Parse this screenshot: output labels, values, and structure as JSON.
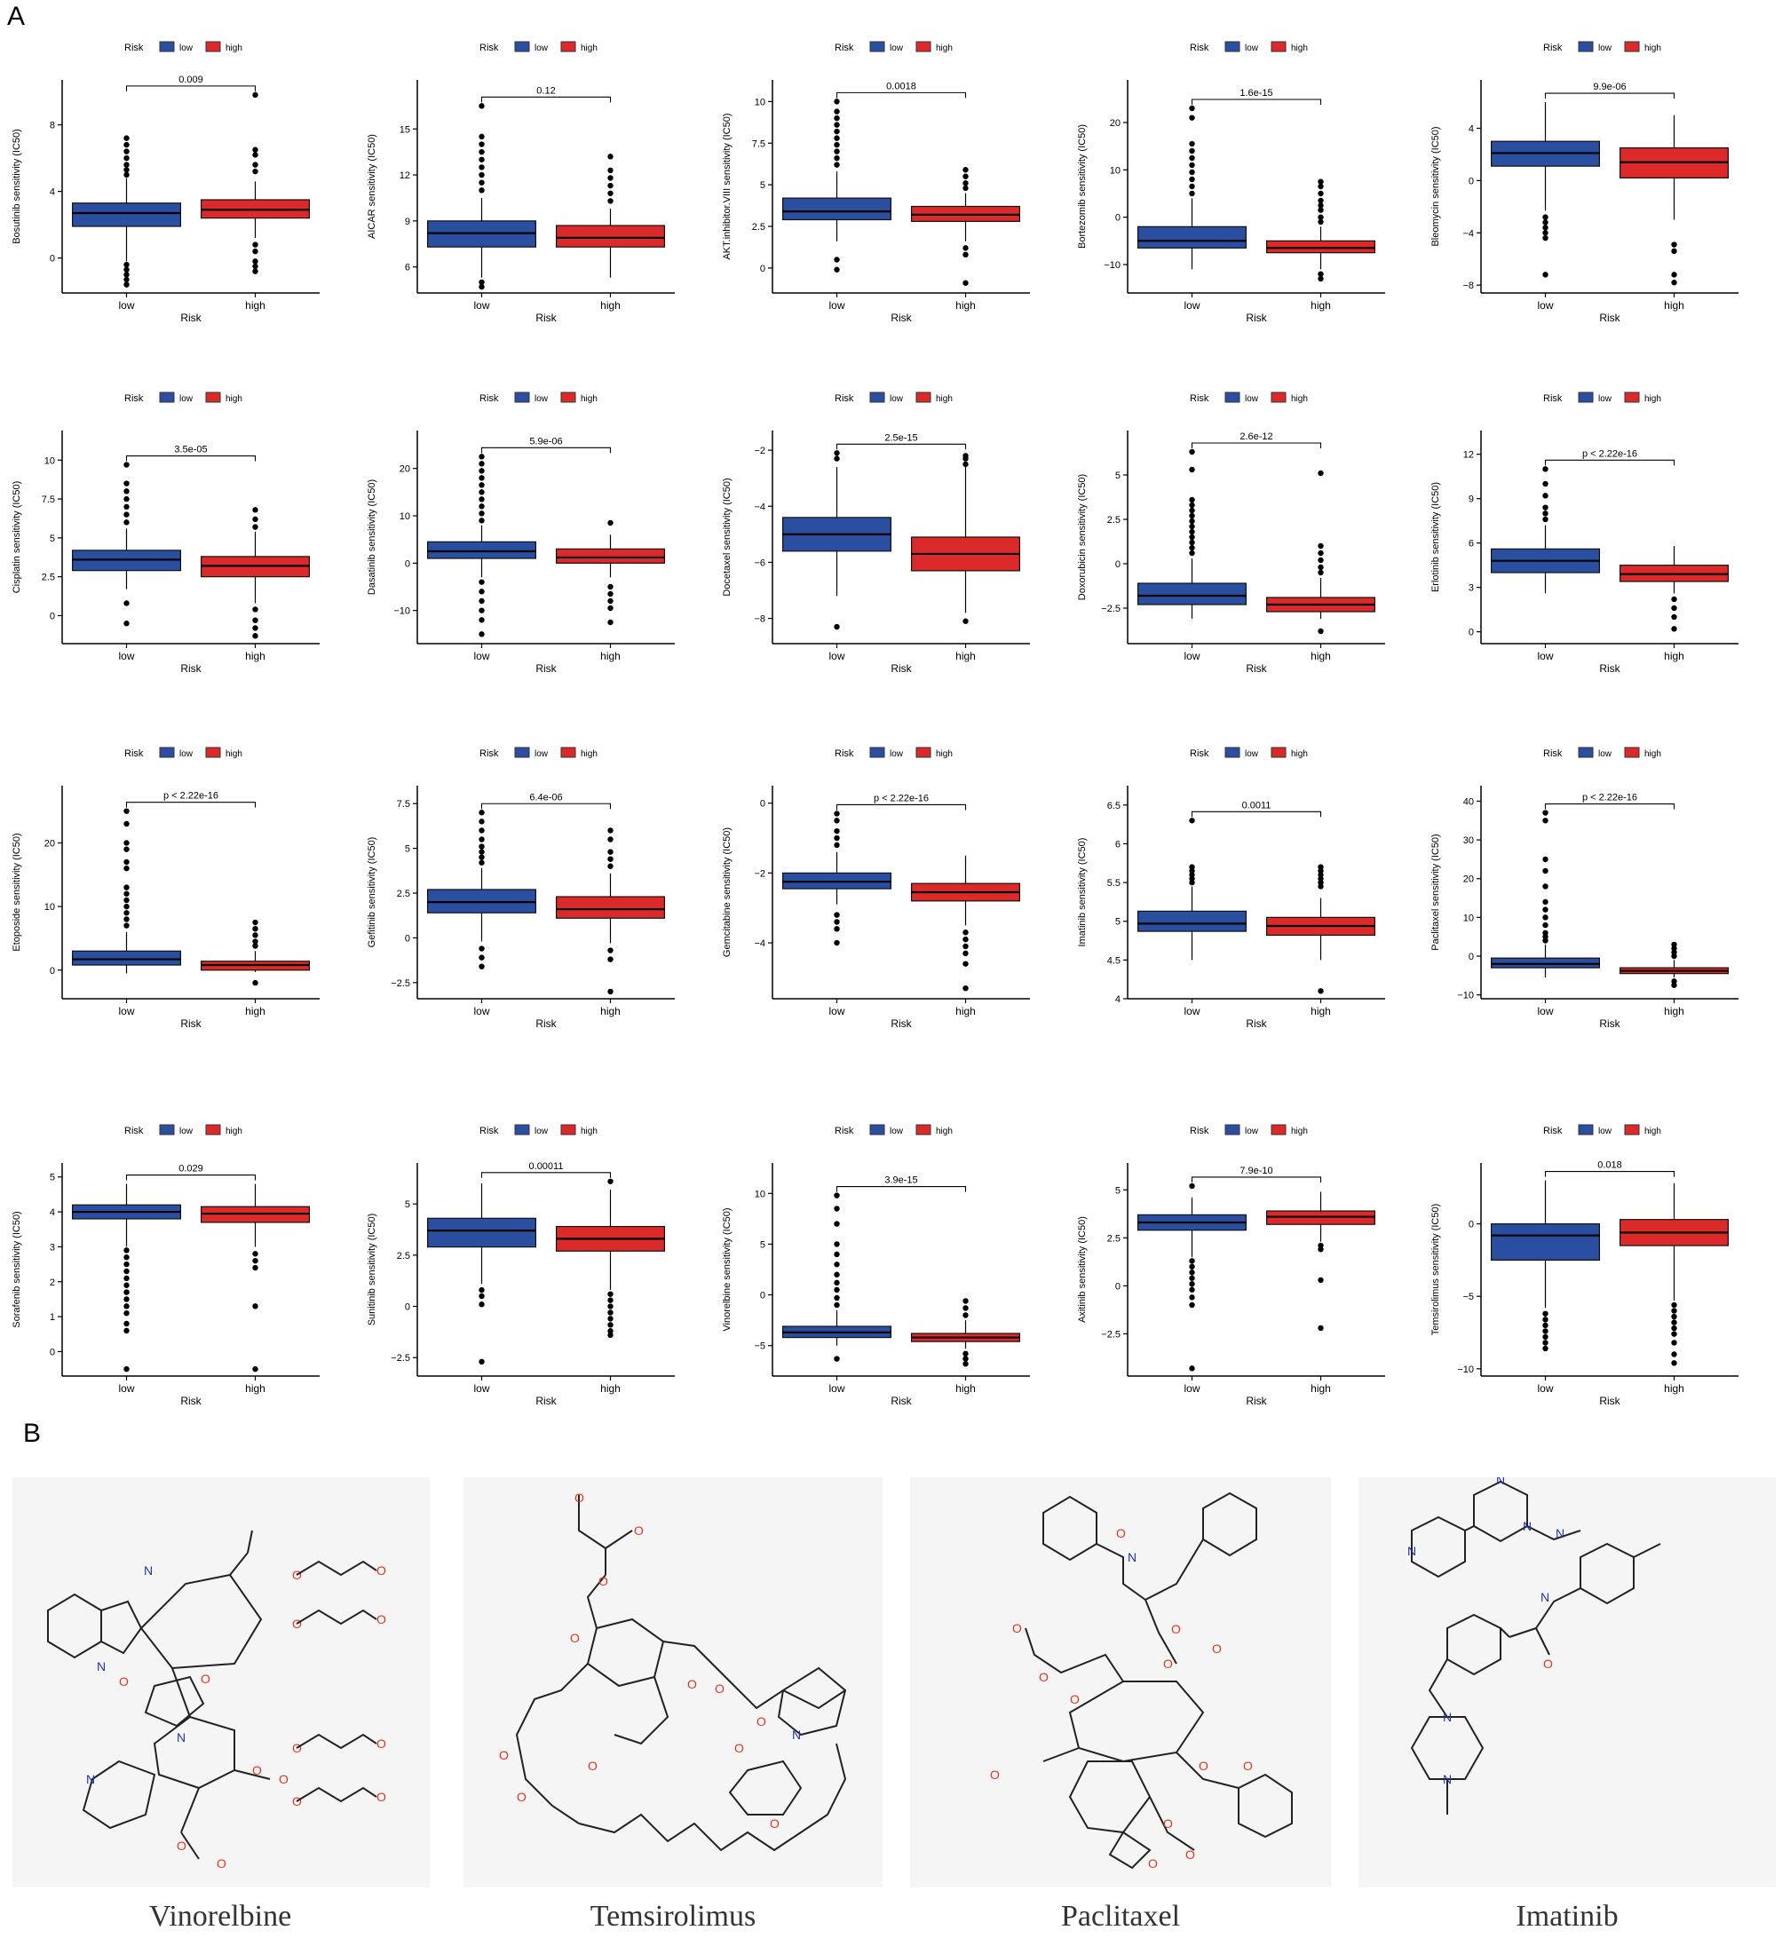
{
  "panels": {
    "a": "A",
    "b": "B"
  },
  "legend": {
    "title": "Risk",
    "low": "low",
    "high": "high"
  },
  "colors": {
    "low": "#2a4fa0",
    "high": "#dc2a2a",
    "atom_o": "#e0361c",
    "atom_n": "#2233aa",
    "atom_h": "#6a8f8a"
  },
  "chart_data": [
    {
      "type": "box",
      "ylabel": "Bosutinib sensitivity (IC50)",
      "xlabel": "Risk",
      "categories": [
        "low",
        "high"
      ],
      "p": "0.009",
      "yticks": [
        0,
        4,
        8
      ],
      "ylim": [
        -2.1,
        10.7
      ],
      "low": {
        "min": -0.2,
        "q1": 1.9,
        "median": 2.7,
        "q3": 3.3,
        "max": 4.8,
        "outliers": [
          5,
          5.3,
          5.6,
          6,
          6.4,
          6.8,
          7.2,
          -0.4,
          -0.7,
          -1.0,
          -1.3,
          -1.6
        ]
      },
      "high": {
        "min": 1.2,
        "q1": 2.4,
        "median": 2.9,
        "q3": 3.5,
        "max": 4.6,
        "outliers": [
          5.2,
          5.6,
          6.2,
          6.5,
          9.8,
          0.8,
          0.4,
          -0.2,
          -0.5,
          -0.8
        ]
      }
    },
    {
      "type": "box",
      "ylabel": "AICAR sensitivity (IC50)",
      "xlabel": "Risk",
      "categories": [
        "low",
        "high"
      ],
      "p": "0.12",
      "yticks": [
        6,
        9,
        12,
        15
      ],
      "ylim": [
        4.3,
        18.2
      ],
      "low": {
        "min": 5.3,
        "q1": 7.3,
        "median": 8.2,
        "q3": 9.0,
        "max": 10.5,
        "outliers": [
          11,
          11.5,
          12,
          12.5,
          13,
          13.5,
          14,
          14.5,
          16.5,
          4.7,
          5.0
        ]
      },
      "high": {
        "min": 5.3,
        "q1": 7.3,
        "median": 7.9,
        "q3": 8.7,
        "max": 9.8,
        "outliers": [
          10.3,
          10.8,
          11.3,
          11.8,
          12.3,
          13.2
        ]
      }
    },
    {
      "type": "box",
      "ylabel": "AKT.inhibitor.VIII sensitivity (IC50)",
      "xlabel": "Risk",
      "categories": [
        "low",
        "high"
      ],
      "p": "0.0018",
      "yticks": [
        0,
        2.5,
        5,
        7.5,
        10
      ],
      "ylim": [
        -1.5,
        11.3
      ],
      "low": {
        "min": 1.6,
        "q1": 2.9,
        "median": 3.4,
        "q3": 4.2,
        "max": 5.8,
        "outliers": [
          6.2,
          6.6,
          7,
          7.4,
          7.8,
          8.2,
          8.6,
          9,
          9.4,
          10,
          0.5,
          -0.1
        ]
      },
      "high": {
        "min": 1.6,
        "q1": 2.8,
        "median": 3.2,
        "q3": 3.7,
        "max": 4.5,
        "outliers": [
          4.8,
          5.1,
          5.5,
          5.9,
          1.2,
          0.8,
          -0.9
        ]
      }
    },
    {
      "type": "box",
      "ylabel": "Bortezomib sensitivity (IC50)",
      "xlabel": "Risk",
      "categories": [
        "low",
        "high"
      ],
      "p": "1.6e-15",
      "yticks": [
        -10,
        0,
        10,
        20
      ],
      "ylim": [
        -16,
        29
      ],
      "low": {
        "min": -11,
        "q1": -6.5,
        "median": -5,
        "q3": -2,
        "max": 4,
        "outliers": [
          5,
          6.5,
          8,
          9.5,
          11,
          12.5,
          14,
          15.5,
          21,
          23
        ]
      },
      "high": {
        "min": -11,
        "q1": -7.5,
        "median": -6.5,
        "q3": -5,
        "max": -2,
        "outliers": [
          -1,
          0,
          1.5,
          2.5,
          3.5,
          5,
          6.5,
          7.5,
          -12,
          -13
        ]
      }
    },
    {
      "type": "box",
      "ylabel": "Bleomycin sensitivity (IC50)",
      "xlabel": "Risk",
      "categories": [
        "low",
        "high"
      ],
      "p": "9.9e-06",
      "yticks": [
        -8,
        -4,
        0,
        4
      ],
      "ylim": [
        -8.6,
        7.7
      ],
      "low": {
        "min": -2.3,
        "q1": 1.1,
        "median": 2.1,
        "q3": 3.0,
        "max": 6.0,
        "outliers": [
          -2.8,
          -3.2,
          -3.6,
          -4.0,
          -4.4,
          -7.2
        ]
      },
      "high": {
        "min": -3.0,
        "q1": 0.2,
        "median": 1.4,
        "q3": 2.5,
        "max": 5.0,
        "outliers": [
          -4.9,
          -5.4,
          -7.2,
          -7.8
        ]
      }
    },
    {
      "type": "box",
      "ylabel": "Cisplatin sensitivity (IC50)",
      "xlabel": "Risk",
      "categories": [
        "low",
        "high"
      ],
      "p": "3.5e-05",
      "yticks": [
        0,
        2.5,
        5,
        7.5,
        10
      ],
      "ylim": [
        -1.8,
        11.9
      ],
      "low": {
        "min": 1.7,
        "q1": 2.9,
        "median": 3.6,
        "q3": 4.2,
        "max": 5.6,
        "outliers": [
          6,
          6.5,
          7,
          7.5,
          8,
          8.5,
          9.7,
          0.8,
          -0.5
        ]
      },
      "high": {
        "min": 0.8,
        "q1": 2.5,
        "median": 3.2,
        "q3": 3.8,
        "max": 5.4,
        "outliers": [
          5.7,
          6.2,
          6.8,
          0.4,
          -0.3,
          -0.8,
          -1.3
        ]
      }
    },
    {
      "type": "box",
      "ylabel": "Dasatinib sensitivity (IC50)",
      "xlabel": "Risk",
      "categories": [
        "low",
        "high"
      ],
      "p": "5.9e-06",
      "yticks": [
        -10,
        0,
        10,
        20
      ],
      "ylim": [
        -17,
        28
      ],
      "low": {
        "min": -3,
        "q1": 1,
        "median": 2.5,
        "q3": 4.5,
        "max": 8,
        "outliers": [
          9,
          10.5,
          12,
          13.5,
          15,
          16.5,
          18,
          19.5,
          21,
          22.5,
          -4,
          -6,
          -8,
          -10,
          -12,
          -15
        ]
      },
      "high": {
        "min": -3,
        "q1": 0,
        "median": 1.2,
        "q3": 3,
        "max": 6,
        "outliers": [
          8.5,
          -5,
          -6.5,
          -8,
          -9.5,
          -12.5
        ]
      }
    },
    {
      "type": "box",
      "ylabel": "Docetaxel sensitivity (IC50)",
      "xlabel": "Risk",
      "categories": [
        "low",
        "high"
      ],
      "p": "2.5e-15",
      "yticks": [
        -8,
        -6,
        -4,
        -2
      ],
      "ylim": [
        -8.9,
        -1.3
      ],
      "low": {
        "min": -7.2,
        "q1": -5.6,
        "median": -5.0,
        "q3": -4.4,
        "max": -2.6,
        "outliers": [
          -2.3,
          -2.1,
          -8.3
        ]
      },
      "high": {
        "min": -7.8,
        "q1": -6.3,
        "median": -5.7,
        "q3": -5.1,
        "max": -2.6,
        "outliers": [
          -2.5,
          -2.3,
          -2.2,
          -8.1
        ]
      }
    },
    {
      "type": "box",
      "ylabel": "Doxorubicin sensitivity (IC50)",
      "xlabel": "Risk",
      "categories": [
        "low",
        "high"
      ],
      "p": "2.6e-12",
      "yticks": [
        -2.5,
        0,
        2.5,
        5
      ],
      "ylim": [
        -4.5,
        7.5
      ],
      "low": {
        "min": -3.1,
        "q1": -2.3,
        "median": -1.8,
        "q3": -1.1,
        "max": 0.3,
        "outliers": [
          0.6,
          0.9,
          1.2,
          1.5,
          1.8,
          2.1,
          2.4,
          2.7,
          3.0,
          3.3,
          3.6,
          5.3,
          6.3
        ]
      },
      "high": {
        "min": -3.1,
        "q1": -2.7,
        "median": -2.3,
        "q3": -1.9,
        "max": -0.8,
        "outliers": [
          -0.5,
          -0.2,
          0.2,
          0.6,
          1.0,
          5.1,
          -3.8
        ]
      }
    },
    {
      "type": "box",
      "ylabel": "Erlotinib sensitivity (IC50)",
      "xlabel": "Risk",
      "categories": [
        "low",
        "high"
      ],
      "p": "p < 2.22e-16",
      "yticks": [
        0,
        3,
        6,
        9,
        12
      ],
      "ylim": [
        -0.8,
        13.6
      ],
      "low": {
        "min": 2.6,
        "q1": 4.0,
        "median": 4.8,
        "q3": 5.6,
        "max": 7.2,
        "outliers": [
          7.6,
          8.0,
          8.4,
          9.2,
          10.0,
          11.0
        ]
      },
      "high": {
        "min": 2.6,
        "q1": 3.4,
        "median": 3.9,
        "q3": 4.5,
        "max": 5.8,
        "outliers": [
          2.2,
          1.6,
          1.0,
          0.2
        ]
      }
    },
    {
      "type": "box",
      "ylabel": "Etoposide sensitivity (IC50)",
      "xlabel": "Risk",
      "categories": [
        "low",
        "high"
      ],
      "p": "p < 2.22e-16",
      "yticks": [
        0,
        10,
        20
      ],
      "ylim": [
        -4.5,
        29
      ],
      "low": {
        "min": -0.5,
        "q1": 0.8,
        "median": 1.7,
        "q3": 3,
        "max": 6,
        "outliers": [
          7,
          8,
          9,
          10,
          11,
          12,
          13,
          16,
          17,
          19,
          20,
          23,
          25
        ]
      },
      "high": {
        "min": -0.3,
        "q1": 0,
        "median": 0.8,
        "q3": 1.4,
        "max": 3,
        "outliers": [
          3.8,
          4.5,
          5.5,
          6.5,
          7.5,
          -2
        ]
      }
    },
    {
      "type": "box",
      "ylabel": "Gefitinib sensitivity (IC50)",
      "xlabel": "Risk",
      "categories": [
        "low",
        "high"
      ],
      "p": "6.4e-06",
      "yticks": [
        -2.5,
        0,
        2.5,
        5,
        7.5
      ],
      "ylim": [
        -3.4,
        8.5
      ],
      "low": {
        "min": -0.2,
        "q1": 1.4,
        "median": 2.0,
        "q3": 2.7,
        "max": 3.9,
        "outliers": [
          4.2,
          4.5,
          4.8,
          5.1,
          5.5,
          6.0,
          6.5,
          7.0,
          -0.6,
          -1.1,
          -1.6
        ]
      },
      "high": {
        "min": -0.3,
        "q1": 1.1,
        "median": 1.6,
        "q3": 2.3,
        "max": 3.6,
        "outliers": [
          4.0,
          4.4,
          4.8,
          5.5,
          6.0,
          -0.7,
          -1.2,
          -3.0
        ]
      }
    },
    {
      "type": "box",
      "ylabel": "Gemcitabine sensitivity (IC50)",
      "xlabel": "Risk",
      "categories": [
        "low",
        "high"
      ],
      "p": "p < 2.22e-16",
      "yticks": [
        -4,
        -2,
        0
      ],
      "ylim": [
        -5.6,
        0.5
      ],
      "low": {
        "min": -2.9,
        "q1": -2.45,
        "median": -2.25,
        "q3": -2.0,
        "max": -1.4,
        "outliers": [
          -1.2,
          -1.0,
          -0.8,
          -0.5,
          -0.3,
          -3.2,
          -3.4,
          -3.6,
          -4.0
        ]
      },
      "high": {
        "min": -3.5,
        "q1": -2.8,
        "median": -2.55,
        "q3": -2.3,
        "max": -1.5,
        "outliers": [
          -3.7,
          -3.9,
          -4.1,
          -4.3,
          -4.6,
          -5.3
        ]
      }
    },
    {
      "type": "box",
      "ylabel": "Imatinib sensitivity (IC50)",
      "xlabel": "Risk",
      "categories": [
        "low",
        "high"
      ],
      "p": "0.0011",
      "yticks": [
        4,
        4.5,
        5,
        5.5,
        6,
        6.5
      ],
      "ylim": [
        4.0,
        6.75
      ],
      "low": {
        "min": 4.5,
        "q1": 4.87,
        "median": 4.97,
        "q3": 5.13,
        "max": 5.45,
        "outliers": [
          5.5,
          5.55,
          5.6,
          5.65,
          5.7,
          6.3
        ]
      },
      "high": {
        "min": 4.5,
        "q1": 4.82,
        "median": 4.94,
        "q3": 5.05,
        "max": 5.3,
        "outliers": [
          5.45,
          5.5,
          5.55,
          5.6,
          5.65,
          5.7,
          4.1
        ]
      }
    },
    {
      "type": "box",
      "ylabel": "Paclitaxel sensitivity (IC50)",
      "xlabel": "Risk",
      "categories": [
        "low",
        "high"
      ],
      "p": "p < 2.22e-16",
      "yticks": [
        -10,
        0,
        10,
        20,
        30,
        40
      ],
      "ylim": [
        -11,
        44
      ],
      "low": {
        "min": -5.5,
        "q1": -3,
        "median": -2,
        "q3": -0.5,
        "max": 3,
        "outliers": [
          4,
          5,
          6,
          8,
          10,
          12,
          14,
          18,
          22,
          25,
          35,
          37
        ]
      },
      "high": {
        "min": -5.5,
        "q1": -4.5,
        "median": -3.8,
        "q3": -3,
        "max": -1,
        "outliers": [
          0,
          1,
          2,
          3,
          -6.5,
          -7.5
        ]
      }
    },
    {
      "type": "box",
      "ylabel": "Sorafenib sensitivity (IC50)",
      "xlabel": "Risk",
      "categories": [
        "low",
        "high"
      ],
      "p": "0.029",
      "yticks": [
        0,
        1,
        2,
        3,
        4,
        5
      ],
      "ylim": [
        -0.7,
        5.4
      ],
      "low": {
        "min": 3.0,
        "q1": 3.8,
        "median": 4.0,
        "q3": 4.2,
        "max": 4.8,
        "outliers": [
          2.9,
          2.7,
          2.5,
          2.3,
          2.1,
          1.9,
          1.7,
          1.5,
          1.3,
          1.1,
          0.8,
          0.6,
          -0.5
        ]
      },
      "high": {
        "min": 3.0,
        "q1": 3.7,
        "median": 3.95,
        "q3": 4.15,
        "max": 4.8,
        "outliers": [
          2.8,
          2.6,
          2.4,
          1.3,
          -0.5
        ]
      }
    },
    {
      "type": "box",
      "ylabel": "Sunitinib sensitivity (IC50)",
      "xlabel": "Risk",
      "categories": [
        "low",
        "high"
      ],
      "p": "0.00011",
      "yticks": [
        -2.5,
        0,
        2.5,
        5
      ],
      "ylim": [
        -3.4,
        7.0
      ],
      "low": {
        "min": 1.1,
        "q1": 2.9,
        "median": 3.7,
        "q3": 4.3,
        "max": 6.0,
        "outliers": [
          0.8,
          0.5,
          0.1,
          -2.7
        ]
      },
      "high": {
        "min": 0.8,
        "q1": 2.7,
        "median": 3.3,
        "q3": 3.9,
        "max": 5.7,
        "outliers": [
          6.1,
          0.6,
          0.3,
          0,
          -0.3,
          -0.6,
          -0.9,
          -1.2,
          -1.4
        ]
      }
    },
    {
      "type": "box",
      "ylabel": "Vinorelbine sensitivity (IC50)",
      "xlabel": "Risk",
      "categories": [
        "low",
        "high"
      ],
      "p": "3.9e-15",
      "yticks": [
        -5,
        0,
        5,
        10
      ],
      "ylim": [
        -8,
        13
      ],
      "low": {
        "min": -5,
        "q1": -4.2,
        "median": -3.7,
        "q3": -3.1,
        "max": -1.5,
        "outliers": [
          -1,
          -0.3,
          0.5,
          1.2,
          2,
          3,
          4,
          5,
          7,
          8.5,
          9.8,
          -6.3
        ]
      },
      "high": {
        "min": -5.3,
        "q1": -4.6,
        "median": -4.2,
        "q3": -3.8,
        "max": -2.5,
        "outliers": [
          -2,
          -1.3,
          -0.6,
          -5.8,
          -6.3,
          -6.8
        ]
      }
    },
    {
      "type": "box",
      "ylabel": "Axitinib sensitivity (IC50)",
      "xlabel": "Risk",
      "categories": [
        "low",
        "high"
      ],
      "p": "7.9e-10",
      "yticks": [
        -2.5,
        0,
        2.5,
        5
      ],
      "ylim": [
        -4.7,
        6.4
      ],
      "low": {
        "min": 1.5,
        "q1": 2.9,
        "median": 3.3,
        "q3": 3.7,
        "max": 4.6,
        "outliers": [
          5.2,
          1.3,
          1.0,
          0.7,
          0.4,
          0.1,
          -0.2,
          -0.6,
          -1.0,
          -4.3
        ]
      },
      "high": {
        "min": 2.3,
        "q1": 3.2,
        "median": 3.6,
        "q3": 3.9,
        "max": 4.9,
        "outliers": [
          2.1,
          1.9,
          0.3,
          -2.2
        ]
      }
    },
    {
      "type": "box",
      "ylabel": "Temsirolimus sensitivity (IC50)",
      "xlabel": "Risk",
      "categories": [
        "low",
        "high"
      ],
      "p": "0.018",
      "yticks": [
        -10,
        -5,
        0
      ],
      "ylim": [
        -10.5,
        4.2
      ],
      "low": {
        "min": -5.8,
        "q1": -2.5,
        "median": -0.8,
        "q3": 0,
        "max": 3,
        "outliers": [
          -6.2,
          -6.6,
          -7.0,
          -7.4,
          -7.8,
          -8.2,
          -8.6
        ]
      },
      "high": {
        "min": -5.3,
        "q1": -1.5,
        "median": -0.6,
        "q3": 0.3,
        "max": 2.8,
        "outliers": [
          -5.6,
          -6.0,
          -6.4,
          -6.8,
          -7.2,
          -7.6,
          -8.2,
          -9.0,
          -9.6
        ]
      }
    }
  ],
  "molecules": [
    {
      "name": "Vinorelbine"
    },
    {
      "name": "Temsirolimus"
    },
    {
      "name": "Paclitaxel"
    },
    {
      "name": "Imatinib"
    }
  ]
}
